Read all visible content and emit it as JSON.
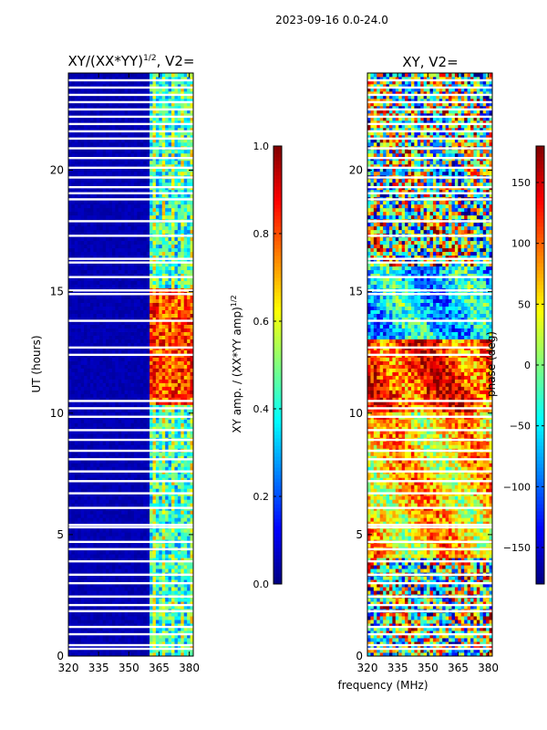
{
  "suptitle": "2023-09-16 0.0-24.0",
  "colors": {
    "background": "#ffffff",
    "gap": "#ffffff",
    "frame": "#000000"
  },
  "chart_data": [
    {
      "type": "heatmap",
      "title": "XY/(XX*YY)",
      "title_sup": "1/2",
      "title_tail": ", V2=",
      "xlabel": "",
      "ylabel": "UT (hours)",
      "xlim": [
        320,
        382
      ],
      "ylim": [
        0,
        24
      ],
      "xticks": [
        320,
        335,
        350,
        365,
        380
      ],
      "xtick_labels": [
        "320",
        "335",
        "350",
        "365",
        "380"
      ],
      "yticks": [
        0,
        5,
        10,
        15,
        20
      ],
      "ytick_labels": [
        "0",
        "5",
        "10",
        "15",
        "20"
      ],
      "colorbar": {
        "label": "XY amp. / (XX*YY amp)",
        "label_sup": "1/2",
        "colormap": "jet",
        "vmin": 0.0,
        "vmax": 1.0,
        "ticks": [
          0.0,
          0.2,
          0.4,
          0.6,
          0.8,
          1.0
        ],
        "tick_labels": [
          "0.0",
          "0.2",
          "0.4",
          "0.6",
          "0.8",
          "1.0"
        ]
      },
      "description_values": {
        "low_band_mhz": [
          320,
          360
        ],
        "low_band_level": 0.03,
        "high_band_mhz": [
          360,
          382
        ],
        "high_band_level": 0.4,
        "bright_block_hours": [
          10.3,
          15.2
        ],
        "bright_block_level": 0.75
      }
    },
    {
      "type": "heatmap",
      "title": "XY, V2=",
      "xlabel": "frequency (MHz)",
      "ylabel": "",
      "xlim": [
        320,
        382
      ],
      "ylim": [
        0,
        24
      ],
      "xticks": [
        320,
        335,
        350,
        365,
        380
      ],
      "xtick_labels": [
        "320",
        "335",
        "350",
        "365",
        "380"
      ],
      "yticks": [
        0,
        5,
        10,
        15,
        20
      ],
      "ytick_labels": [
        "0",
        "5",
        "10",
        "15",
        "20"
      ],
      "colorbar": {
        "label": "phase (deg)",
        "colormap": "jet",
        "vmin": -180,
        "vmax": 180,
        "ticks": [
          -150,
          -100,
          -50,
          0,
          50,
          100,
          150
        ],
        "tick_labels": [
          "−150",
          "−100",
          "−50",
          "0",
          "50",
          "100",
          "150"
        ]
      },
      "description_values": {
        "dominant_phase_deg_10_to_13h": 120,
        "dominant_phase_deg_13_to_16h": -60,
        "dominant_phase_deg_4_to_10h": 60
      }
    }
  ]
}
